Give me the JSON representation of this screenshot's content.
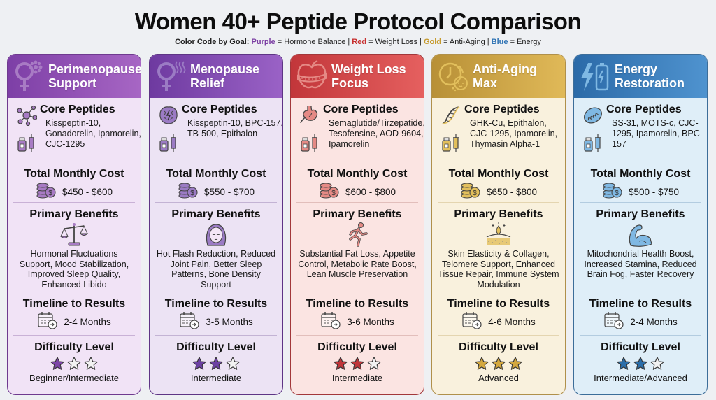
{
  "header": {
    "title": "Women 40+ Peptide Protocol Comparison",
    "legend_prefix": "Color Code by Goal:",
    "legend": [
      {
        "color_name": "Purple",
        "meaning": "= Hormone Balance",
        "hex": "#7b3fa3"
      },
      {
        "color_name": "Red",
        "meaning": "= Weight Loss",
        "hex": "#c7302f"
      },
      {
        "color_name": "Gold",
        "meaning": "= Anti-Aging",
        "hex": "#c69a2e"
      },
      {
        "color_name": "Blue",
        "meaning": "= Energy",
        "hex": "#2f73b4"
      }
    ],
    "separator": "|"
  },
  "labels": {
    "core_peptides": "Core Peptides",
    "total_monthly_cost": "Total Monthly Cost",
    "primary_benefits": "Primary Benefits",
    "timeline_to_results": "Timeline to Results",
    "difficulty_level": "Difficulty Level"
  },
  "cards": [
    {
      "title_line1": "Perimenopause",
      "title_line2": "Support",
      "header_icon": "female-symbol-flower-icon",
      "peptide_icon": "molecule-icon",
      "peptides": "Kisspeptin-10, Gonadorelin, Ipamorelin, CJC-1295",
      "cost": "$450 - $600",
      "benefit_icon": "balance-scale-icon",
      "benefits": "Hormonal Fluctuations Support, Mood Stabilization, Improved Sleep Quality, Enhanced Libido",
      "timeline": "2-4 Months",
      "stars": 1,
      "level": "Beginner/Intermediate",
      "colors": {
        "head1": "#7d3fa6",
        "head2": "#a766c4",
        "body": "#f1e3f6",
        "border": "#6f3a8f",
        "icon": "#a87bc4",
        "star": "#7d45a8",
        "divider": "#c9b1d6"
      }
    },
    {
      "title_line1": "Menopause",
      "title_line2": "Relief",
      "header_icon": "female-symbol-heat-icon",
      "peptide_icon": "brain-icon",
      "peptides": "Kisspeptin-10, BPC-157, TB-500, Epithalon",
      "cost": "$550 - $700",
      "benefit_icon": "woman-face-icon",
      "benefits": "Hot Flash Reduction, Reduced Joint Pain, Better Sleep Patterns, Bone Density Support",
      "timeline": "3-5 Months",
      "stars": 2,
      "level": "Intermediate",
      "colors": {
        "head1": "#6e3aa0",
        "head2": "#9a62c6",
        "body": "#ece3f4",
        "border": "#5e3585",
        "icon": "#9b7bc4",
        "star": "#6d41a3",
        "divider": "#c3b3d4"
      }
    },
    {
      "title_line1": "Weight Loss",
      "title_line2": "Focus",
      "header_icon": "apple-measuring-tape-icon",
      "peptide_icon": "stomach-icon",
      "peptides": "Semaglutide/Tirzepatide, Tesofensine, AOD-9604, Ipamorelin",
      "cost": "$600 - $800",
      "benefit_icon": "runner-icon",
      "benefits": "Substantial Fat Loss, Appetite Control, Metabolic Rate Boost, Lean Muscle Preservation",
      "timeline": "3-6 Months",
      "stars": 2,
      "level": "Intermediate",
      "colors": {
        "head1": "#c2363a",
        "head2": "#e5605f",
        "body": "#fbe4e2",
        "border": "#a2373a",
        "icon": "#e58a85",
        "star": "#c0353a",
        "divider": "#e2bebb"
      }
    },
    {
      "title_line1": "Anti-Aging",
      "title_line2": "Max",
      "header_icon": "clock-face-icon",
      "peptide_icon": "dna-icon",
      "peptides": "GHK-Cu, Epithalon, CJC-1295, Ipamorelin, Thymasin Alpha-1",
      "cost": "$650 - $800",
      "benefit_icon": "skin-drop-icon",
      "benefits": "Skin Elasticity & Collagen, Telomere Support, Enhanced Tissue Repair, Immune System Modulation",
      "timeline": "4-6 Months",
      "stars": 3,
      "level": "Advanced",
      "colors": {
        "head1": "#b89037",
        "head2": "#e0b958",
        "body": "#f9f1dd",
        "border": "#b0904a",
        "icon": "#e2bf5c",
        "star": "#d4a83e",
        "divider": "#e4d5b0"
      }
    },
    {
      "title_line1": "Energy",
      "title_line2": "Restoration",
      "header_icon": "lightning-battery-icon",
      "peptide_icon": "mitochondria-icon",
      "peptides": "SS-31, MOTS-c, CJC-1295, Ipamorelin, BPC-157",
      "cost": "$500 - $750",
      "benefit_icon": "flexed-arm-icon",
      "benefits": "Mitochondrial Health Boost, Increased Stamina, Reduced Brain Fog, Faster Recovery",
      "timeline": "2-4 Months",
      "stars": 2,
      "level": "Intermediate/Advanced",
      "colors": {
        "head1": "#2b6aa8",
        "head2": "#4f93cf",
        "body": "#dfeef8",
        "border": "#3c6d99",
        "icon": "#7fb8e3",
        "star": "#2c6ea9",
        "divider": "#b3cce0"
      }
    }
  ]
}
